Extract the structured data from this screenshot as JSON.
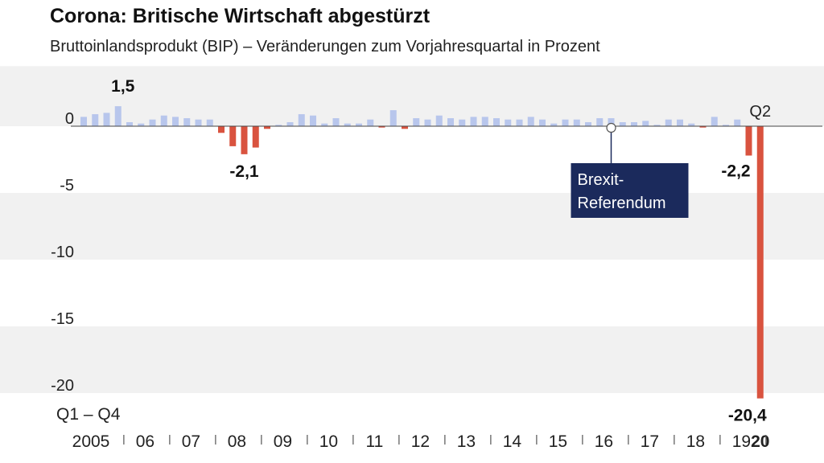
{
  "chart_data": {
    "type": "bar",
    "title": "Corona: Britische Wirtschaft abgestürzt",
    "subtitle": "Bruttoinlandsprodukt (BIP) – Veränderungen zum Vorjahresquartal in Prozent",
    "xlabel": "Q1 – Q4",
    "ylabel": "",
    "ylim": [
      -21,
      4
    ],
    "yticks": [
      "0",
      "-5",
      "-10",
      "-15",
      "-20"
    ],
    "ytick_values": [
      0,
      -5,
      -10,
      -15,
      -20
    ],
    "year_labels": [
      "2005",
      "06",
      "07",
      "08",
      "09",
      "10",
      "11",
      "12",
      "13",
      "14",
      "15",
      "16",
      "17",
      "18",
      "19",
      "20"
    ],
    "bold_year": "20",
    "quarters_per_year": 4,
    "grid": false,
    "band_shading": true,
    "colors": {
      "positive": "#b8c6ec",
      "negative": "#d9533f",
      "brexit_box": "#1b2a5c",
      "band": "#f1f1f1"
    },
    "values": [
      0.7,
      0.9,
      1.0,
      1.5,
      0.3,
      0.2,
      0.5,
      0.8,
      0.7,
      0.6,
      0.5,
      0.5,
      -0.5,
      -1.5,
      -2.1,
      -1.6,
      -0.2,
      0.1,
      0.3,
      0.9,
      0.8,
      0.2,
      0.6,
      0.2,
      0.2,
      0.5,
      -0.1,
      1.2,
      -0.2,
      0.6,
      0.5,
      0.8,
      0.6,
      0.5,
      0.7,
      0.7,
      0.6,
      0.5,
      0.5,
      0.7,
      0.5,
      0.2,
      0.5,
      0.5,
      0.3,
      0.6,
      0.6,
      0.3,
      0.3,
      0.4,
      0.1,
      0.5,
      0.5,
      0.2,
      -0.1,
      0.7,
      0.1,
      0.5,
      -2.2,
      -20.4
    ],
    "annotations": [
      {
        "label": "1,5",
        "index": 3
      },
      {
        "label": "-2,1",
        "index": 14
      },
      {
        "label": "-2,2",
        "index": 58
      },
      {
        "label": "-20,4",
        "index": 59
      },
      {
        "label": "Q2",
        "index": 59
      }
    ],
    "brexit": {
      "line1": "Brexit-",
      "line2": "Referendum",
      "index": 46
    }
  }
}
